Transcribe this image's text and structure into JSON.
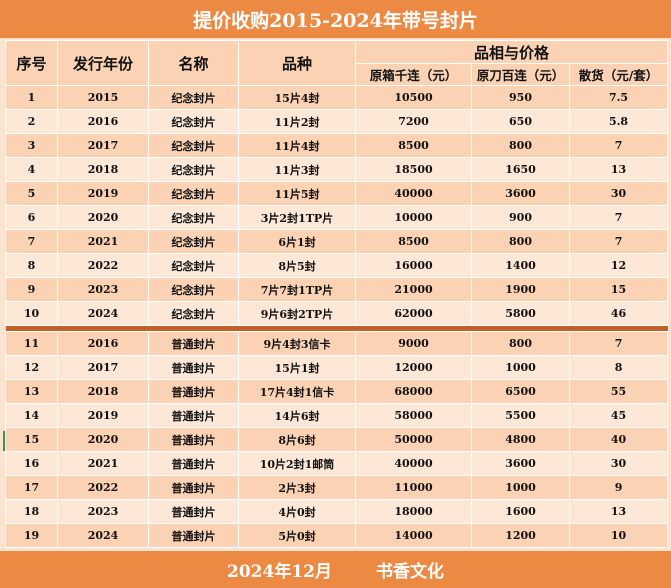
{
  "title": "提价收购2015-2024年带号封片",
  "headers": {
    "index": "序号",
    "year": "发行年份",
    "name": "名称",
    "variety": "品种",
    "price_group": "品相与价格",
    "box_price": "原箱千连（元）",
    "bundle_price": "原刀百连（元）",
    "loose_price": "散货（元/套）"
  },
  "rows_commemorative": [
    {
      "no": "1",
      "year": "2015",
      "name": "纪念封片",
      "variety": "15片4封",
      "box": "10500",
      "bundle": "950",
      "loose": "7.5"
    },
    {
      "no": "2",
      "year": "2016",
      "name": "纪念封片",
      "variety": "11片2封",
      "box": "7200",
      "bundle": "650",
      "loose": "5.8"
    },
    {
      "no": "3",
      "year": "2017",
      "name": "纪念封片",
      "variety": "11片4封",
      "box": "8500",
      "bundle": "800",
      "loose": "7"
    },
    {
      "no": "4",
      "year": "2018",
      "name": "纪念封片",
      "variety": "11片3封",
      "box": "18500",
      "bundle": "1650",
      "loose": "13"
    },
    {
      "no": "5",
      "year": "2019",
      "name": "纪念封片",
      "variety": "11片5封",
      "box": "40000",
      "bundle": "3600",
      "loose": "30"
    },
    {
      "no": "6",
      "year": "2020",
      "name": "纪念封片",
      "variety": "3片2封1TP片",
      "box": "10000",
      "bundle": "900",
      "loose": "7"
    },
    {
      "no": "7",
      "year": "2021",
      "name": "纪念封片",
      "variety": "6片1封",
      "box": "8500",
      "bundle": "800",
      "loose": "7"
    },
    {
      "no": "8",
      "year": "2022",
      "name": "纪念封片",
      "variety": "8片5封",
      "box": "16000",
      "bundle": "1400",
      "loose": "12"
    },
    {
      "no": "9",
      "year": "2023",
      "name": "纪念封片",
      "variety": "7片7封1TP片",
      "box": "21000",
      "bundle": "1900",
      "loose": "15"
    },
    {
      "no": "10",
      "year": "2024",
      "name": "纪念封片",
      "variety": "9片6封2TP片",
      "box": "62000",
      "bundle": "5800",
      "loose": "46"
    }
  ],
  "rows_regular": [
    {
      "no": "11",
      "year": "2016",
      "name": "普通封片",
      "variety": "9片4封3信卡",
      "box": "9000",
      "bundle": "800",
      "loose": "7"
    },
    {
      "no": "12",
      "year": "2017",
      "name": "普通封片",
      "variety": "15片1封",
      "box": "12000",
      "bundle": "1000",
      "loose": "8"
    },
    {
      "no": "13",
      "year": "2018",
      "name": "普通封片",
      "variety": "17片4封1信卡",
      "box": "68000",
      "bundle": "6500",
      "loose": "55"
    },
    {
      "no": "14",
      "year": "2019",
      "name": "普通封片",
      "variety": "14片6封",
      "box": "58000",
      "bundle": "5500",
      "loose": "45"
    },
    {
      "no": "15",
      "year": "2020",
      "name": "普通封片",
      "variety": "8片6封",
      "box": "50000",
      "bundle": "4800",
      "loose": "40"
    },
    {
      "no": "16",
      "year": "2021",
      "name": "普通封片",
      "variety": "10片2封1邮筒",
      "box": "40000",
      "bundle": "3600",
      "loose": "30"
    },
    {
      "no": "17",
      "year": "2022",
      "name": "普通封片",
      "variety": "2片3封",
      "box": "11000",
      "bundle": "1000",
      "loose": "9"
    },
    {
      "no": "18",
      "year": "2023",
      "name": "普通封片",
      "variety": "4片0封",
      "box": "18000",
      "bundle": "1600",
      "loose": "13"
    },
    {
      "no": "19",
      "year": "2024",
      "name": "普通封片",
      "variety": "5片0封",
      "box": "14000",
      "bundle": "1200",
      "loose": "10"
    }
  ],
  "footer": {
    "date": "2024年12月",
    "brand": "书香文化"
  }
}
